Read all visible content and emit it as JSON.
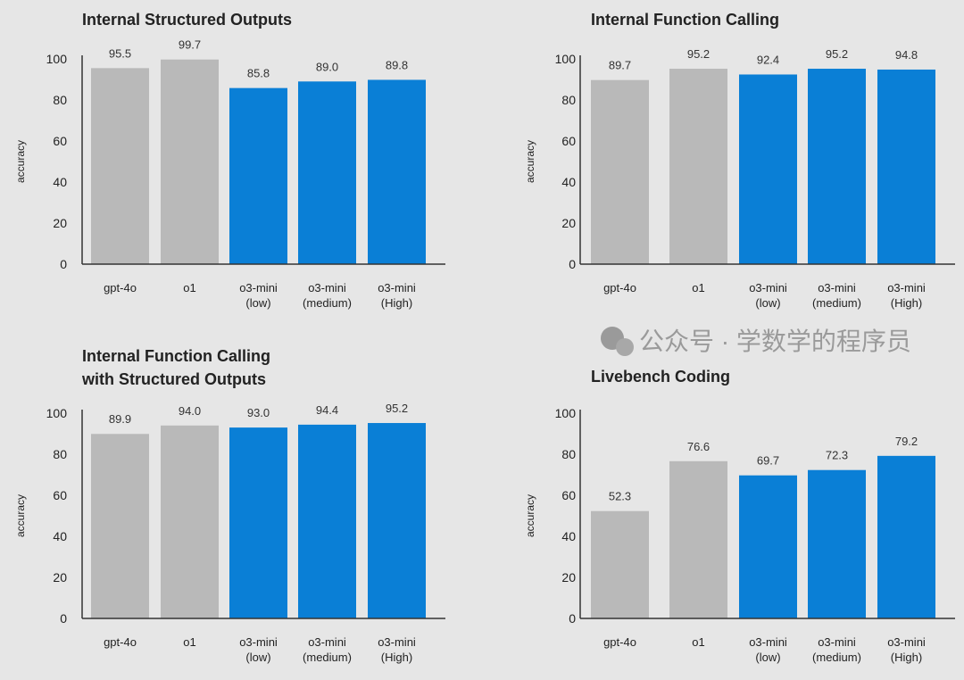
{
  "colors": {
    "baseline": "#b9b9b9",
    "o3": "#0a7fd6",
    "background": "#e6e6e6"
  },
  "watermark": "公众号 · 学数学的程序员",
  "chart_data": [
    {
      "type": "bar",
      "title": [
        "Internal Structured Outputs"
      ],
      "ylabel": "accuracy",
      "ylim": [
        0,
        100
      ],
      "yticks": [
        0,
        20,
        40,
        60,
        80,
        100
      ],
      "categories": [
        [
          "gpt-4o"
        ],
        [
          "o1"
        ],
        [
          "o3-mini",
          "(low)"
        ],
        [
          "o3-mini",
          "(medium)"
        ],
        [
          "o3-mini",
          "(High)"
        ]
      ],
      "values": [
        95.5,
        99.7,
        85.8,
        89.0,
        89.8
      ],
      "labels": [
        "95.5",
        "99.7",
        "85.8",
        "89.0",
        "89.8"
      ]
    },
    {
      "type": "bar",
      "title": [
        "Internal Function Calling"
      ],
      "ylabel": "accuracy",
      "ylim": [
        0,
        100
      ],
      "yticks": [
        0,
        20,
        40,
        60,
        80,
        100
      ],
      "categories": [
        [
          "gpt-4o"
        ],
        [
          "o1"
        ],
        [
          "o3-mini",
          "(low)"
        ],
        [
          "o3-mini",
          "(medium)"
        ],
        [
          "o3-mini",
          "(High)"
        ]
      ],
      "values": [
        89.7,
        95.2,
        92.4,
        95.2,
        94.8
      ],
      "labels": [
        "89.7",
        "95.2",
        "92.4",
        "95.2",
        "94.8"
      ]
    },
    {
      "type": "bar",
      "title": [
        "Internal Function Calling",
        "with Structured Outputs"
      ],
      "ylabel": "accuracy",
      "ylim": [
        0,
        100
      ],
      "yticks": [
        0,
        20,
        40,
        60,
        80,
        100
      ],
      "categories": [
        [
          "gpt-4o"
        ],
        [
          "o1"
        ],
        [
          "o3-mini",
          "(low)"
        ],
        [
          "o3-mini",
          "(medium)"
        ],
        [
          "o3-mini",
          "(High)"
        ]
      ],
      "values": [
        89.9,
        94.0,
        93.0,
        94.4,
        95.2
      ],
      "labels": [
        "89.9",
        "94.0",
        "93.0",
        "94.4",
        "95.2"
      ]
    },
    {
      "type": "bar",
      "title": [
        "Livebench Coding"
      ],
      "ylabel": "accuracy",
      "ylim": [
        0,
        100
      ],
      "yticks": [
        0,
        20,
        40,
        60,
        80,
        100
      ],
      "categories": [
        [
          "gpt-4o"
        ],
        [
          "o1"
        ],
        [
          "o3-mini",
          "(low)"
        ],
        [
          "o3-mini",
          "(medium)"
        ],
        [
          "o3-mini",
          "(High)"
        ]
      ],
      "values": [
        52.3,
        76.6,
        69.7,
        72.3,
        79.2
      ],
      "labels": [
        "52.3",
        "76.6",
        "69.7",
        "72.3",
        "79.2"
      ]
    }
  ]
}
